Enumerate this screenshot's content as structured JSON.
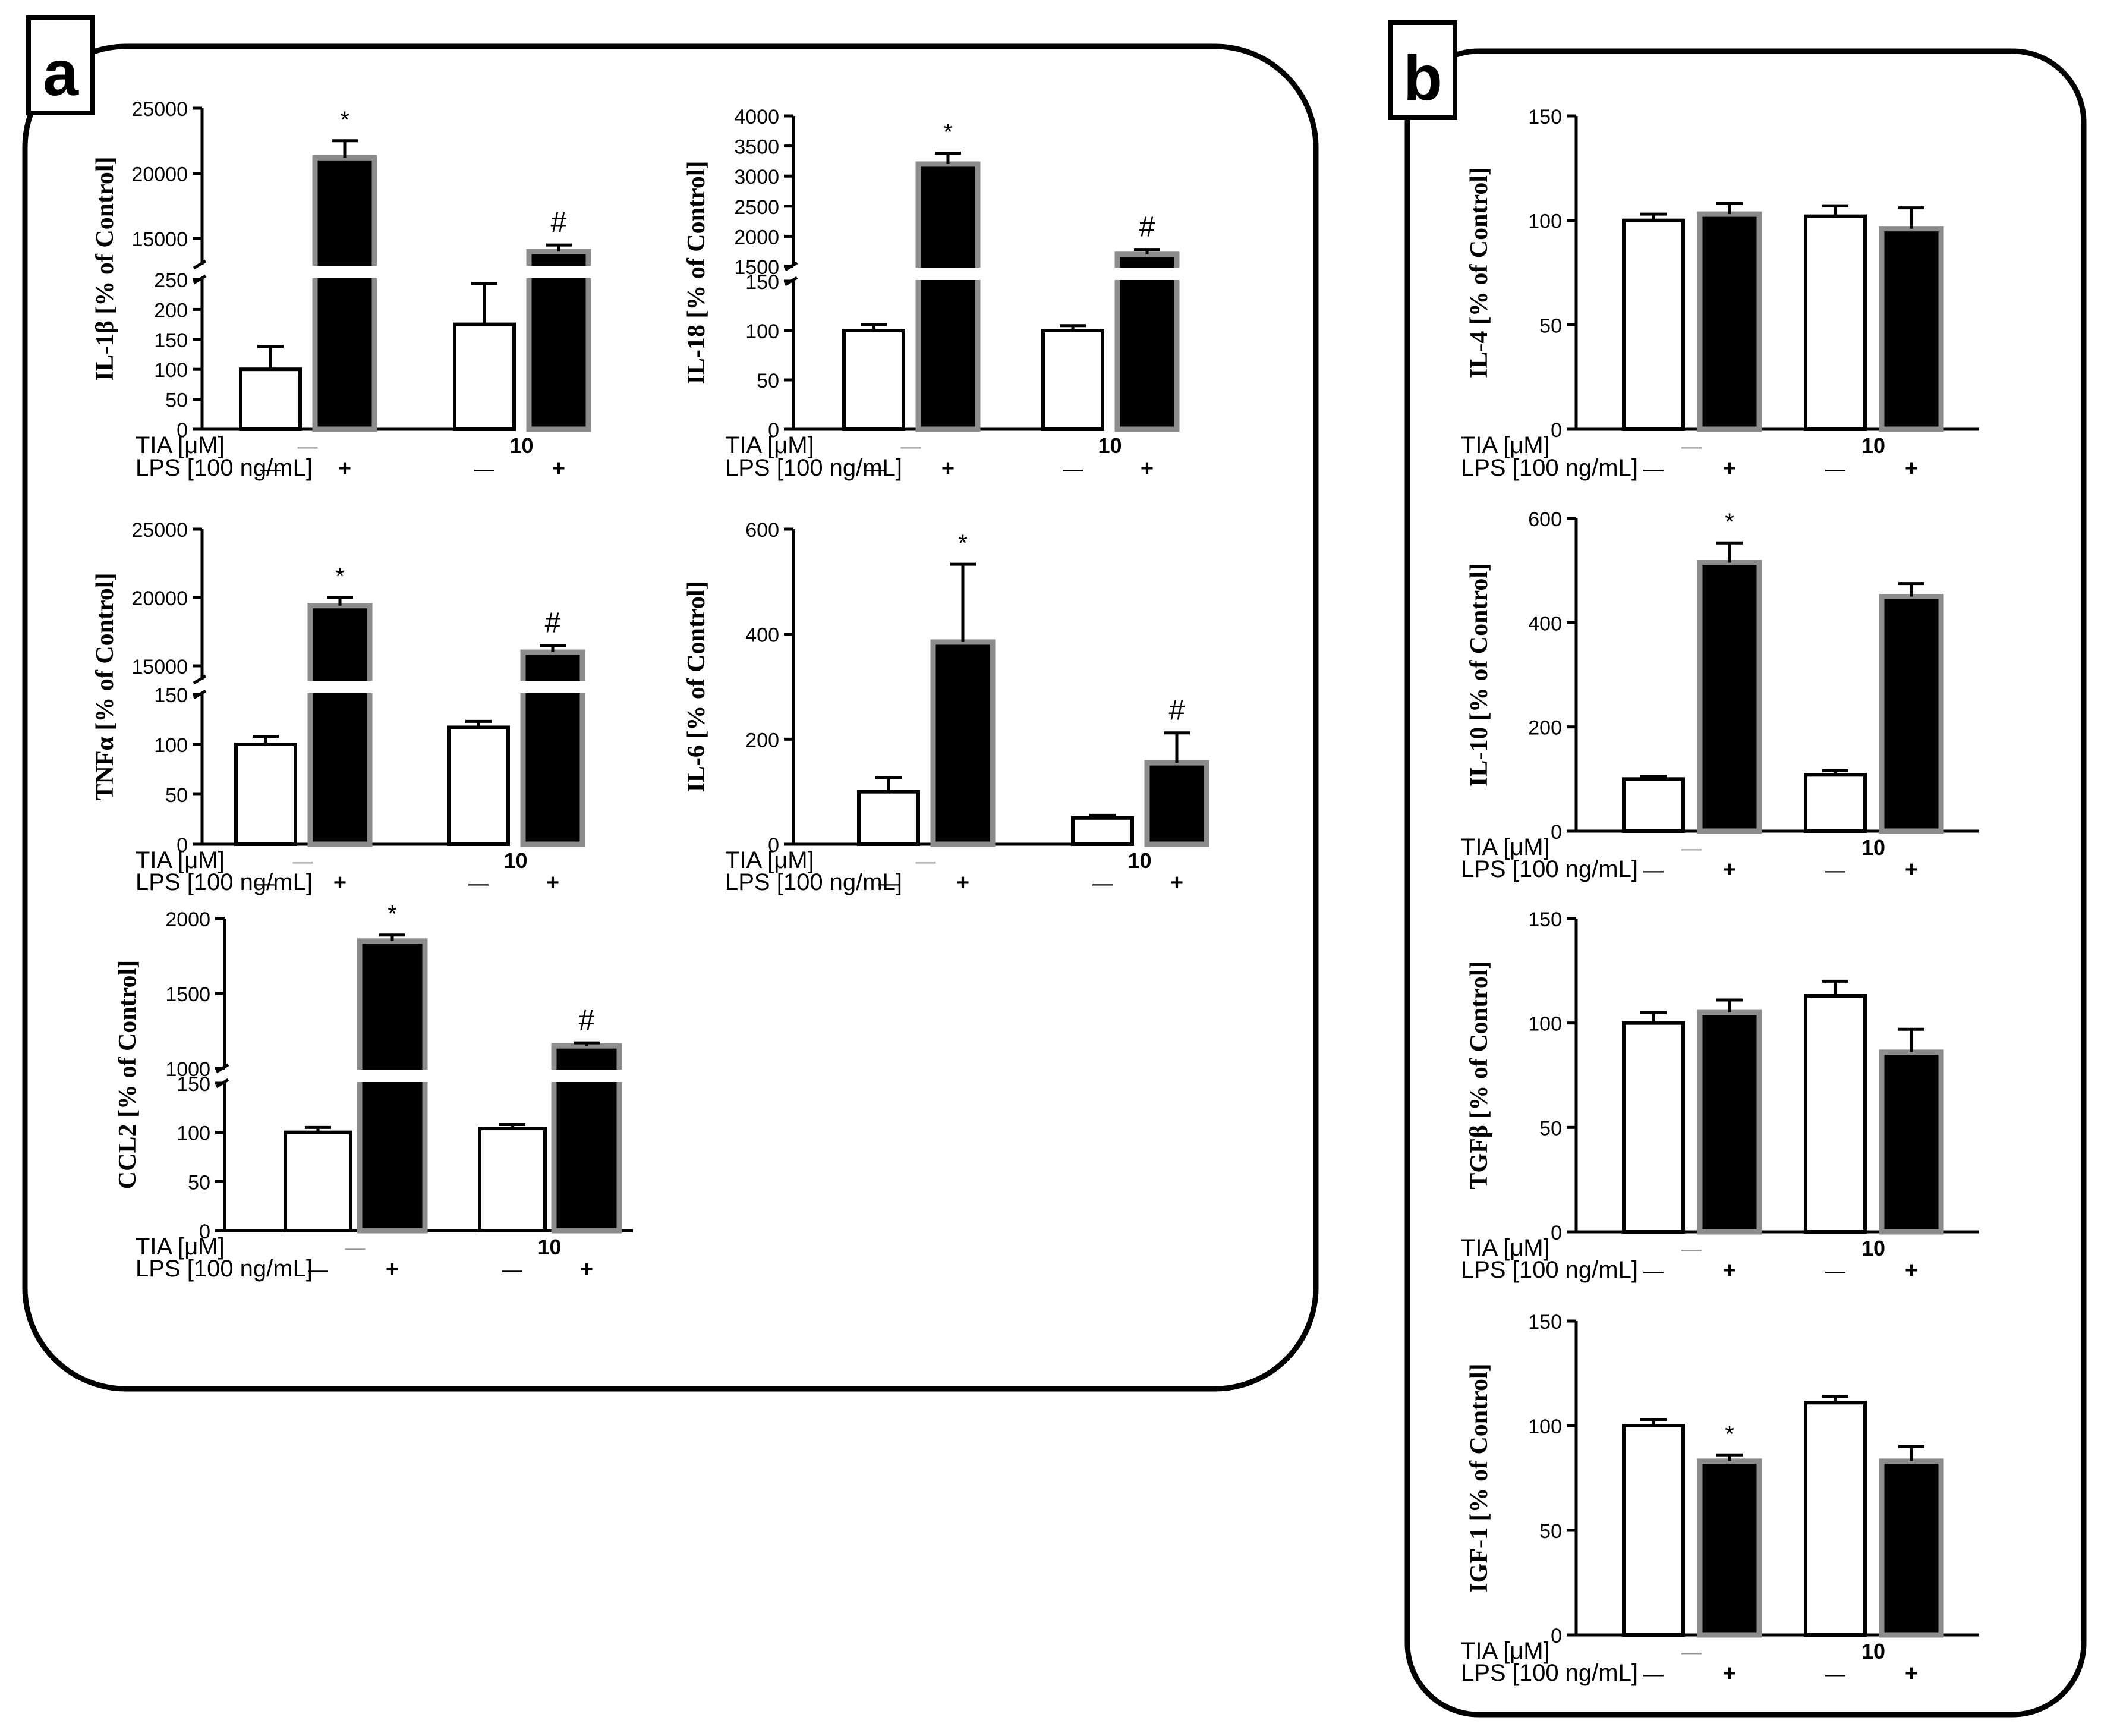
{
  "figure": {
    "panel_a_label": "a",
    "panel_b_label": "b",
    "row_labels": {
      "tia": "TIA [μM]",
      "lps": "LPS [100 ng/mL]"
    },
    "group_labels": {
      "ctrl": "—",
      "tia": "10"
    },
    "lps_marks": {
      "minus": "—",
      "plus": "+"
    },
    "colors": {
      "open_bar": "#ffffff",
      "filled_bar": "#000000",
      "bar_outline_filled": "#8c8c8c",
      "axis": "#000000"
    }
  },
  "chart_data": [
    {
      "id": "il1b",
      "type": "bar",
      "panel": "a",
      "ylabel": "IL-1β [% of Control]",
      "categories": [
        "control",
        "LPS",
        "TIA 10",
        "TIA 10 + LPS"
      ],
      "values": [
        100,
        21200,
        175,
        14000
      ],
      "errors": [
        38,
        1300,
        68,
        500
      ],
      "annotations": [
        "",
        "*",
        "",
        "#"
      ],
      "axis_break": true,
      "lower": {
        "ylim": [
          0,
          250
        ],
        "ticks": [
          0,
          50,
          100,
          150,
          200,
          250
        ]
      },
      "upper": {
        "ylim": [
          13000,
          25000
        ],
        "ticks": [
          15000,
          20000,
          25000
        ]
      }
    },
    {
      "id": "il18",
      "type": "bar",
      "panel": "a",
      "ylabel": "IL-18 [% of Control]",
      "categories": [
        "control",
        "LPS",
        "TIA 10",
        "TIA 10 + LPS"
      ],
      "values": [
        100,
        3200,
        100,
        1700
      ],
      "errors": [
        6,
        180,
        5,
        80
      ],
      "annotations": [
        "",
        "*",
        "",
        "#"
      ],
      "axis_break": true,
      "lower": {
        "ylim": [
          0,
          150
        ],
        "ticks": [
          0,
          50,
          100,
          150
        ]
      },
      "upper": {
        "ylim": [
          1500,
          4000
        ],
        "ticks": [
          1500,
          2000,
          2500,
          3000,
          3500,
          4000
        ]
      }
    },
    {
      "id": "tnfa",
      "type": "bar",
      "panel": "a",
      "ylabel": "TNFα [% of Control]",
      "categories": [
        "control",
        "LPS",
        "TIA 10",
        "TIA 10 + LPS"
      ],
      "values": [
        100,
        19400,
        117,
        16000
      ],
      "errors": [
        8,
        600,
        6,
        500
      ],
      "annotations": [
        "",
        "*",
        "",
        "#"
      ],
      "axis_break": true,
      "lower": {
        "ylim": [
          0,
          150
        ],
        "ticks": [
          0,
          50,
          100,
          150
        ]
      },
      "upper": {
        "ylim": [
          14000,
          25000
        ],
        "ticks": [
          15000,
          20000,
          25000
        ]
      }
    },
    {
      "id": "il6",
      "type": "bar",
      "panel": "a",
      "ylabel": "IL-6 [% of Control]",
      "categories": [
        "control",
        "LPS",
        "TIA 10",
        "TIA 10 + LPS"
      ],
      "values": [
        100,
        385,
        50,
        155
      ],
      "errors": [
        27,
        148,
        5,
        57
      ],
      "annotations": [
        "",
        "*",
        "",
        "#"
      ],
      "axis_break": false,
      "ylim": [
        0,
        600
      ],
      "ticks": [
        0,
        200,
        400,
        600
      ]
    },
    {
      "id": "ccl2",
      "type": "bar",
      "panel": "a",
      "ylabel": "CCL2 [% of Control]",
      "categories": [
        "control",
        "LPS",
        "TIA 10",
        "TIA 10 + LPS"
      ],
      "values": [
        100,
        1850,
        104,
        1150
      ],
      "errors": [
        5,
        40,
        4,
        20
      ],
      "annotations": [
        "",
        "*",
        "",
        "#"
      ],
      "axis_break": true,
      "lower": {
        "ylim": [
          0,
          150
        ],
        "ticks": [
          0,
          50,
          100,
          150
        ]
      },
      "upper": {
        "ylim": [
          1000,
          2000
        ],
        "ticks": [
          1000,
          1500,
          2000
        ]
      }
    },
    {
      "id": "il4",
      "type": "bar",
      "panel": "b",
      "ylabel": "IL-4 [% of Control]",
      "categories": [
        "control",
        "LPS",
        "TIA 10",
        "TIA 10 + LPS"
      ],
      "values": [
        100,
        103,
        102,
        96
      ],
      "errors": [
        3,
        5,
        5,
        10
      ],
      "annotations": [
        "",
        "",
        "",
        ""
      ],
      "axis_break": false,
      "ylim": [
        0,
        150
      ],
      "ticks": [
        0,
        50,
        100,
        150
      ]
    },
    {
      "id": "il10",
      "type": "bar",
      "panel": "b",
      "ylabel": "IL-10 [% of Control]",
      "categories": [
        "control",
        "LPS",
        "TIA 10",
        "TIA 10 + LPS"
      ],
      "values": [
        100,
        515,
        108,
        450
      ],
      "errors": [
        5,
        38,
        8,
        25
      ],
      "annotations": [
        "",
        "*",
        "",
        ""
      ],
      "axis_break": false,
      "ylim": [
        0,
        600
      ],
      "ticks": [
        0,
        200,
        400,
        600
      ]
    },
    {
      "id": "tgfb",
      "type": "bar",
      "panel": "b",
      "ylabel": "TGFβ [% of Control]",
      "categories": [
        "control",
        "LPS",
        "TIA 10",
        "TIA 10 + LPS"
      ],
      "values": [
        100,
        105,
        113,
        86
      ],
      "errors": [
        5,
        6,
        7,
        11
      ],
      "annotations": [
        "",
        "",
        "",
        ""
      ],
      "axis_break": false,
      "ylim": [
        0,
        150
      ],
      "ticks": [
        0,
        50,
        100,
        150
      ]
    },
    {
      "id": "igf1",
      "type": "bar",
      "panel": "b",
      "ylabel": "IGF-1 [% of Control]",
      "categories": [
        "control",
        "LPS",
        "TIA 10",
        "TIA 10 + LPS"
      ],
      "values": [
        100,
        83,
        111,
        83
      ],
      "errors": [
        3,
        3,
        3,
        7
      ],
      "annotations": [
        "",
        "*",
        "",
        ""
      ],
      "axis_break": false,
      "ylim": [
        0,
        150
      ],
      "ticks": [
        0,
        50,
        100,
        150
      ]
    }
  ]
}
